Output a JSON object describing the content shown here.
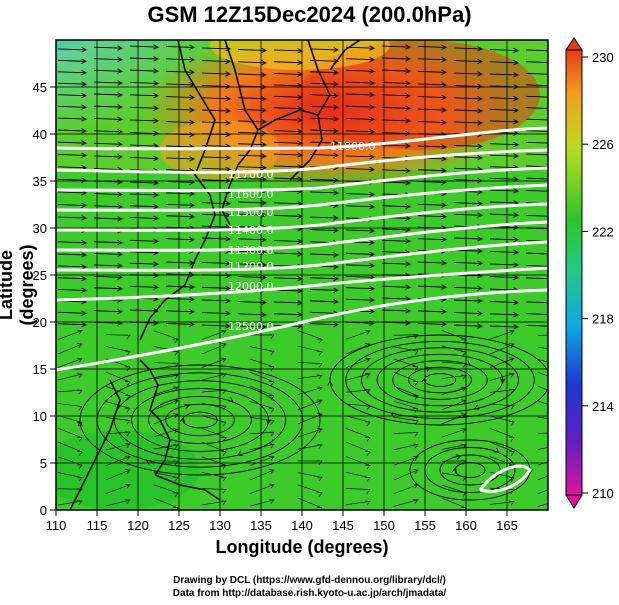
{
  "title": "GSM 12Z15Dec2024 (200.0hPa)",
  "axes": {
    "xlabel": "Longitude (degrees)",
    "ylabel": "Latitude  (degrees)",
    "x_ticks": [
      "110",
      "115",
      "120",
      "125",
      "130",
      "135",
      "140",
      "145",
      "150",
      "155",
      "160",
      "165"
    ],
    "y_ticks": [
      "0",
      "5",
      "10",
      "15",
      "20",
      "25",
      "30",
      "35",
      "40",
      "45"
    ],
    "xlim": [
      110,
      170
    ],
    "ylim": [
      0,
      50
    ]
  },
  "colorbar": {
    "ticks": [
      "230",
      "226",
      "222",
      "218",
      "214",
      "210"
    ],
    "min": 210,
    "max": 230,
    "colors": [
      "#e0149e",
      "#3a2cd0",
      "#0aa0e0",
      "#20d0a0",
      "#22c22a",
      "#b0dd20",
      "#f2c020",
      "#e84a1a"
    ]
  },
  "contours": [
    {
      "label": "11800.0"
    },
    {
      "label": "11700.0"
    },
    {
      "label": "11600.0"
    },
    {
      "label": "11500.0"
    },
    {
      "label": "11400.0"
    },
    {
      "label": "11300.0"
    },
    {
      "label": "11200.0"
    },
    {
      "label": "12000.0"
    },
    {
      "label": "12500.0"
    }
  ],
  "credits": {
    "line1": "Drawing by DCL (https://www.gfd-dennou.org/library/dcl/)",
    "line2": "Data from http://database.rish.kyoto-u.ac.jp/arch/jmadata/"
  },
  "colors": {
    "cold": "#20c0c8",
    "mid": "#3ccb2a",
    "warm": "#f05a1a",
    "hot": "#e8201a"
  }
}
